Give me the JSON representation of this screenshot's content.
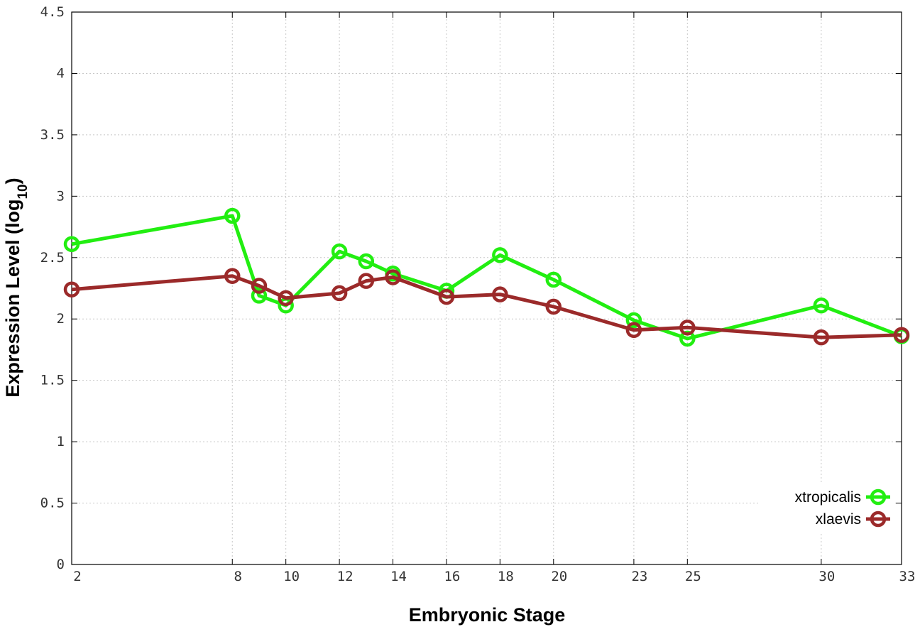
{
  "chart_data": {
    "type": "line",
    "title": "",
    "xlabel": "Embryonic Stage",
    "ylabel_main": "Expression Level (log",
    "ylabel_sub": "10",
    "ylabel_close": ")",
    "x": [
      2,
      8,
      9,
      10,
      12,
      13,
      14,
      16,
      18,
      20,
      23,
      25,
      30,
      33
    ],
    "x_ticks": [
      2,
      8,
      10,
      12,
      14,
      16,
      18,
      20,
      23,
      25,
      30,
      33
    ],
    "x_tick_labels": [
      "2",
      "8",
      "10",
      "12",
      "14",
      "16",
      "18",
      "20",
      "23",
      "25",
      "30",
      "33"
    ],
    "xlim": [
      2,
      33
    ],
    "ylim": [
      0,
      4.5
    ],
    "y_ticks": [
      0,
      0.5,
      1,
      1.5,
      2,
      2.5,
      3,
      3.5,
      4,
      4.5
    ],
    "y_tick_labels": [
      "0",
      "0.5",
      "1",
      "1.5",
      "2",
      "2.5",
      "3",
      "3.5",
      "4",
      "4.5"
    ],
    "grid": true,
    "legend_position": "bottom-right",
    "series": [
      {
        "name": "xtropicalis",
        "color": "#22ee11",
        "values": [
          2.61,
          2.84,
          2.19,
          2.11,
          2.55,
          2.47,
          2.37,
          2.23,
          2.52,
          2.32,
          1.99,
          1.84,
          2.11,
          1.86
        ]
      },
      {
        "name": "xlaevis",
        "color": "#9b2a2a",
        "values": [
          2.24,
          2.35,
          2.27,
          2.17,
          2.21,
          2.31,
          2.34,
          2.18,
          2.2,
          2.1,
          1.91,
          1.93,
          1.85,
          1.87
        ]
      }
    ]
  }
}
